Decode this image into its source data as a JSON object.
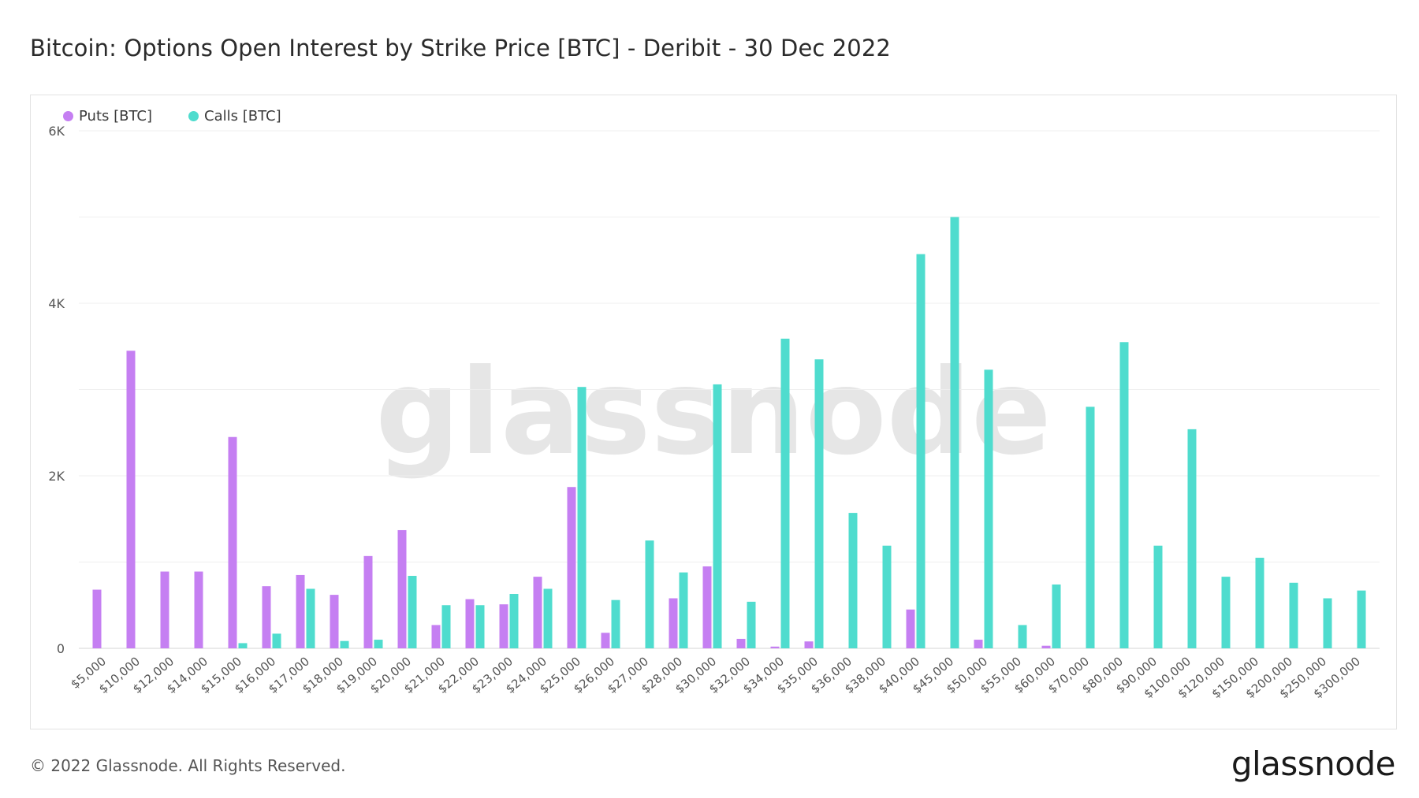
{
  "title": "Bitcoin: Options Open Interest by Strike Price [BTC] - Deribit - 30 Dec 2022",
  "footer": {
    "copyright": "© 2022 Glassnode. All Rights Reserved.",
    "brand": "glassnode"
  },
  "watermark": "glassnode",
  "colors": {
    "puts": "#c57ff2",
    "calls": "#4fdcce",
    "grid": "#efefef",
    "axis_text": "#555555"
  },
  "chart_data": {
    "type": "bar",
    "title": "Bitcoin: Options Open Interest by Strike Price [BTC] - Deribit - 30 Dec 2022",
    "xlabel": "",
    "ylabel": "",
    "ylim": [
      0,
      6000
    ],
    "yticks": [
      0,
      2000,
      4000,
      6000
    ],
    "ytick_labels": [
      "0",
      "2K",
      "4K",
      "6K"
    ],
    "grid": true,
    "legend_position": "top-left",
    "categories": [
      "$5,000",
      "$10,000",
      "$12,000",
      "$14,000",
      "$15,000",
      "$16,000",
      "$17,000",
      "$18,000",
      "$19,000",
      "$20,000",
      "$21,000",
      "$22,000",
      "$23,000",
      "$24,000",
      "$25,000",
      "$26,000",
      "$27,000",
      "$28,000",
      "$30,000",
      "$32,000",
      "$34,000",
      "$35,000",
      "$36,000",
      "$38,000",
      "$40,000",
      "$45,000",
      "$50,000",
      "$55,000",
      "$60,000",
      "$70,000",
      "$80,000",
      "$90,000",
      "$100,000",
      "$120,000",
      "$150,000",
      "$200,000",
      "$250,000",
      "$300,000"
    ],
    "series": [
      {
        "name": "Puts [BTC]",
        "color": "#c57ff2",
        "values": [
          680,
          3450,
          890,
          890,
          2450,
          720,
          850,
          620,
          1070,
          1370,
          270,
          570,
          510,
          830,
          1870,
          180,
          0,
          580,
          950,
          110,
          20,
          80,
          0,
          0,
          450,
          0,
          100,
          0,
          30,
          0,
          0,
          0,
          0,
          0,
          0,
          0,
          0,
          0
        ]
      },
      {
        "name": "Calls [BTC]",
        "color": "#4fdcce",
        "values": [
          0,
          0,
          0,
          0,
          60,
          170,
          690,
          85,
          100,
          840,
          500,
          500,
          630,
          690,
          3030,
          560,
          1250,
          880,
          3060,
          540,
          3590,
          3350,
          1570,
          1190,
          4570,
          5000,
          3230,
          270,
          740,
          2800,
          3550,
          1190,
          2540,
          830,
          1050,
          760,
          580,
          670
        ]
      }
    ]
  }
}
